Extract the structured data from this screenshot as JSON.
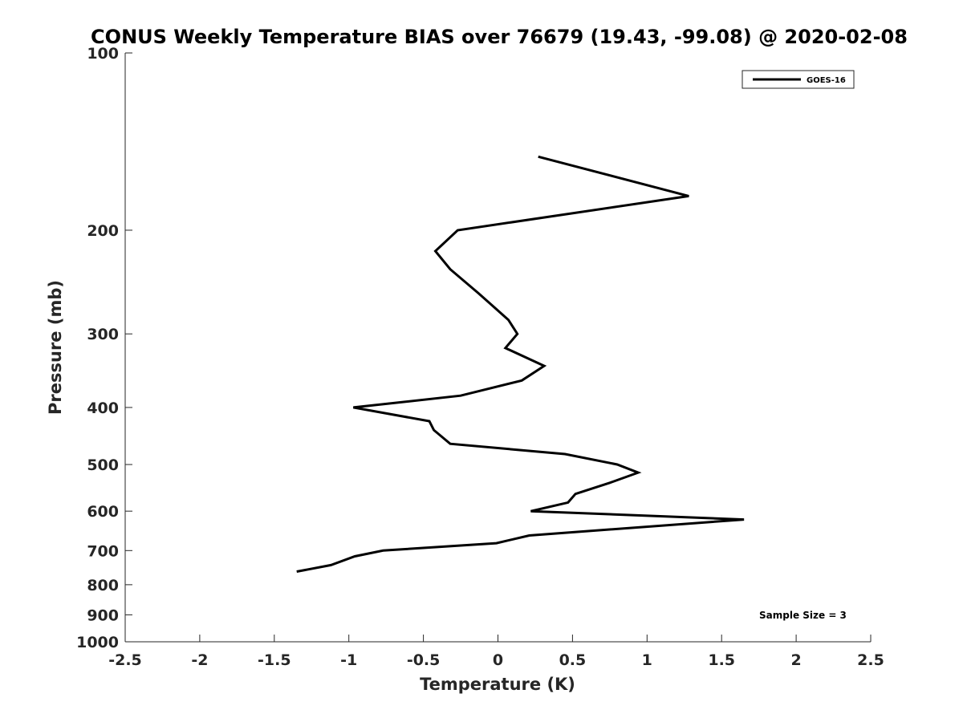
{
  "chart_data": {
    "type": "line",
    "title": "CONUS Weekly Temperature BIAS over 76679 (19.43, -99.08) @ 2020-02-08",
    "xlabel": "Temperature (K)",
    "ylabel": "Pressure (mb)",
    "xlim": [
      -2.5,
      2.5
    ],
    "ylim": [
      100,
      1000
    ],
    "y_scale": "log",
    "y_reversed": true,
    "x_ticks": [
      "-2.5",
      "-2",
      "-1.5",
      "-1",
      "-0.5",
      "0",
      "0.5",
      "1",
      "1.5",
      "2",
      "2.5"
    ],
    "x_tick_values": [
      -2.5,
      -2,
      -1.5,
      -1,
      -0.5,
      0,
      0.5,
      1,
      1.5,
      2,
      2.5
    ],
    "y_ticks": [
      "100",
      "200",
      "300",
      "400",
      "500",
      "600",
      "700",
      "800",
      "900",
      "1000"
    ],
    "y_tick_values": [
      100,
      200,
      300,
      400,
      500,
      600,
      700,
      800,
      900,
      1000
    ],
    "grid": false,
    "legend_position": "top-right",
    "annotation": "Sample Size = 3",
    "series": [
      {
        "name": "GOES-16",
        "color": "#000000",
        "x": [
          0.27,
          1.28,
          -0.27,
          -0.42,
          -0.32,
          -0.13,
          0.07,
          0.13,
          0.05,
          0.31,
          0.16,
          -0.25,
          -0.97,
          -0.46,
          -0.43,
          -0.32,
          0.45,
          0.8,
          0.94,
          0.75,
          0.52,
          0.47,
          0.22,
          1.65,
          0.21,
          -0.01,
          -0.77,
          -0.96,
          -1.12,
          -1.35
        ],
        "y": [
          150,
          175,
          200,
          217,
          233,
          256,
          284,
          300,
          317,
          340,
          360,
          382,
          400,
          422,
          437,
          461,
          480,
          500,
          516,
          537,
          561,
          580,
          600,
          620,
          660,
          680,
          700,
          716,
          741,
          760
        ]
      }
    ]
  }
}
